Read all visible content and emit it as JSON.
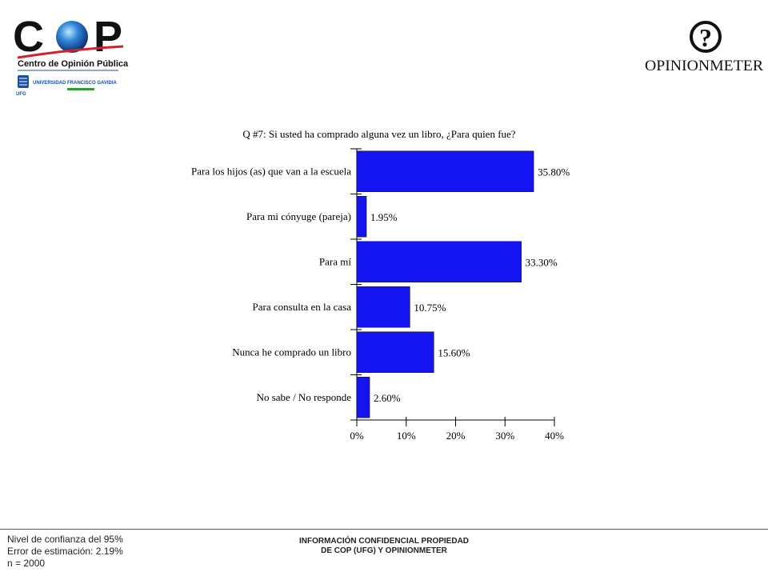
{
  "header": {
    "cop_logo_text": "COP",
    "cop_subtitle": "Centro de Opinión Pública",
    "ufg_text": "UNIVERSIDAD FRANCISCO GAVIDIA",
    "ufg_abbr": "UFG",
    "opinionmeter_mark": "?",
    "opinionmeter_text": "OPINIONMETER"
  },
  "colors": {
    "bar": "#1414f0",
    "cop_red": "#d4202a",
    "cop_blue": "#1c4fa0"
  },
  "chart_data": {
    "type": "bar",
    "orientation": "horizontal",
    "title": "Q #7: Si usted ha comprado alguna vez un libro, ¿Para quien fue?",
    "categories": [
      "Para los hijos (as) que van a la escuela",
      "Para mi cónyuge (pareja)",
      "Para mí",
      "Para consulta en la casa",
      "Nunca he comprado un libro",
      "No sabe / No responde"
    ],
    "values": [
      35.8,
      1.95,
      33.3,
      10.75,
      15.6,
      2.6
    ],
    "value_labels": [
      "35.80%",
      "1.95%",
      "33.30%",
      "10.75%",
      "15.60%",
      "2.60%"
    ],
    "xlim": [
      0,
      40
    ],
    "xticks": [
      0,
      10,
      20,
      30,
      40
    ],
    "xtick_labels": [
      "0%",
      "10%",
      "20%",
      "30%",
      "40%"
    ],
    "grid": false,
    "legend": "none"
  },
  "footer": {
    "stats": [
      "Nivel de confianza del 95%",
      "Error de estimación: 2.19%",
      "n = 2000"
    ],
    "confidential": [
      "INFORMACIÓN CONFIDENCIAL PROPIEDAD",
      "DE COP (UFG) Y OPINIONMETER"
    ]
  }
}
